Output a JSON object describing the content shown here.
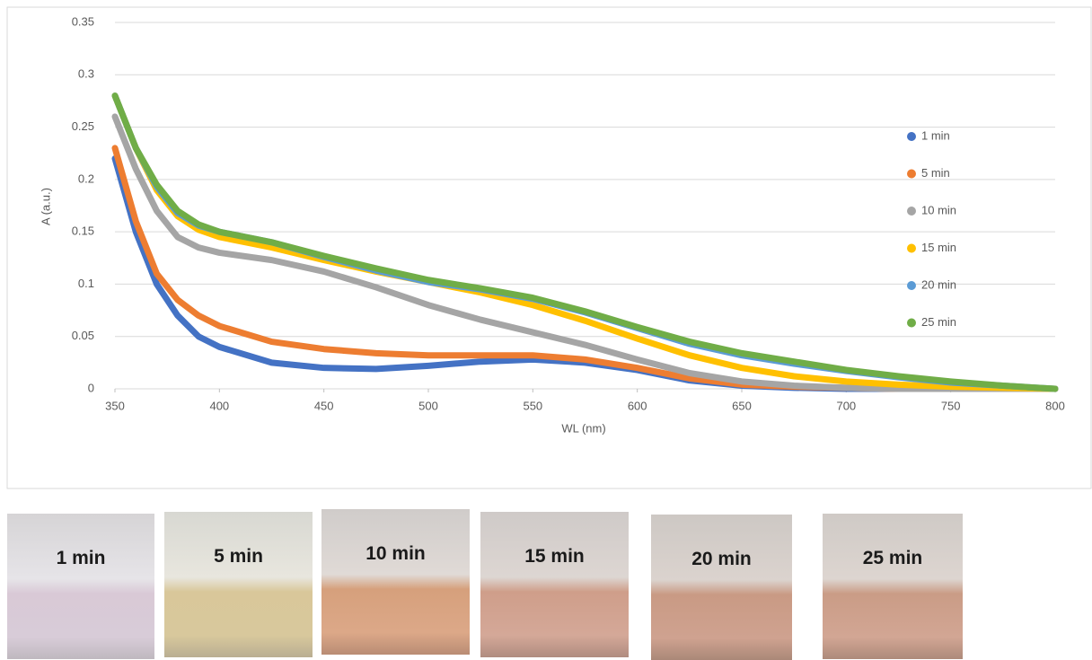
{
  "chart_data": {
    "type": "line",
    "x_label": "WL (nm)",
    "y_label": "A (a.u.)",
    "x": [
      350,
      360,
      370,
      380,
      390,
      400,
      425,
      450,
      475,
      500,
      525,
      550,
      575,
      600,
      625,
      650,
      675,
      700,
      725,
      750,
      775,
      800
    ],
    "xlim": [
      350,
      800
    ],
    "xticks": [
      350,
      400,
      450,
      500,
      550,
      600,
      650,
      700,
      750,
      800
    ],
    "ylim": [
      0,
      0.35
    ],
    "yticks": [
      0,
      0.05,
      0.1,
      0.15,
      0.2,
      0.25,
      0.3,
      0.35
    ],
    "grid": true,
    "legend": "right",
    "series": [
      {
        "name": "1 min",
        "color": "#4472c4",
        "values": [
          0.22,
          0.15,
          0.1,
          0.07,
          0.05,
          0.04,
          0.025,
          0.02,
          0.019,
          0.022,
          0.026,
          0.028,
          0.025,
          0.018,
          0.008,
          0.003,
          0.001,
          0,
          0,
          0,
          0,
          0
        ]
      },
      {
        "name": "5 min",
        "color": "#ed7d31",
        "values": [
          0.23,
          0.16,
          0.11,
          0.085,
          0.07,
          0.06,
          0.045,
          0.038,
          0.034,
          0.032,
          0.032,
          0.032,
          0.028,
          0.02,
          0.01,
          0.004,
          0.002,
          0.001,
          0,
          0,
          0,
          0
        ]
      },
      {
        "name": "10 min",
        "color": "#a5a5a5",
        "values": [
          0.26,
          0.21,
          0.17,
          0.145,
          0.135,
          0.13,
          0.123,
          0.112,
          0.097,
          0.08,
          0.066,
          0.054,
          0.042,
          0.028,
          0.015,
          0.007,
          0.003,
          0.001,
          0,
          0,
          0,
          0
        ]
      },
      {
        "name": "15 min",
        "color": "#ffc000",
        "values": [
          0.28,
          0.23,
          0.19,
          0.165,
          0.152,
          0.145,
          0.135,
          0.123,
          0.112,
          0.102,
          0.092,
          0.08,
          0.065,
          0.048,
          0.032,
          0.02,
          0.012,
          0.007,
          0.004,
          0.002,
          0.001,
          0
        ]
      },
      {
        "name": "20 min",
        "color": "#5b9bd5",
        "values": [
          0.28,
          0.23,
          0.193,
          0.168,
          0.156,
          0.15,
          0.14,
          0.126,
          0.113,
          0.102,
          0.095,
          0.086,
          0.073,
          0.058,
          0.043,
          0.032,
          0.024,
          0.017,
          0.011,
          0.006,
          0.003,
          0
        ]
      },
      {
        "name": "25 min",
        "color": "#70ad47",
        "values": [
          0.28,
          0.23,
          0.195,
          0.17,
          0.157,
          0.15,
          0.14,
          0.127,
          0.115,
          0.104,
          0.096,
          0.087,
          0.074,
          0.059,
          0.045,
          0.034,
          0.026,
          0.018,
          0.012,
          0.007,
          0.003,
          0
        ]
      }
    ]
  },
  "photos": [
    {
      "label": "1 min"
    },
    {
      "label": "5 min"
    },
    {
      "label": "10 min"
    },
    {
      "label": "15 min"
    },
    {
      "label": "20 min"
    },
    {
      "label": "25 min"
    }
  ]
}
